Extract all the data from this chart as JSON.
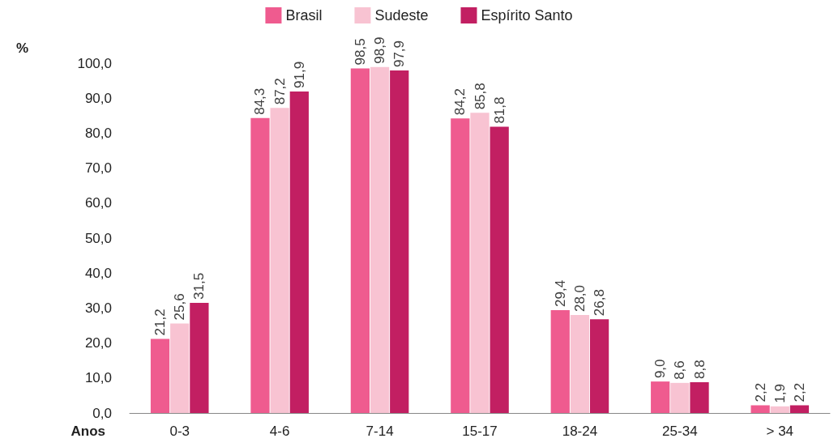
{
  "chart_data": {
    "type": "bar",
    "xlabel": "Anos",
    "ylabel": "%",
    "categories": [
      "0-3",
      "4-6",
      "7-14",
      "15-17",
      "18-24",
      "25-34",
      "> 34"
    ],
    "series": [
      {
        "name": "Brasil",
        "color": "#ef5b8f",
        "values": [
          21.2,
          84.3,
          98.5,
          84.2,
          29.4,
          9.0,
          2.2
        ],
        "value_labels": [
          "21,2",
          "84,3",
          "98,5",
          "84,2",
          "29,4",
          "9,0",
          "2,2"
        ]
      },
      {
        "name": "Sudeste",
        "color": "#f8c3d2",
        "values": [
          25.6,
          87.2,
          98.9,
          85.8,
          28.0,
          8.6,
          1.9
        ],
        "value_labels": [
          "25,6",
          "87,2",
          "98,9",
          "85,8",
          "28,0",
          "8,6",
          "1,9"
        ]
      },
      {
        "name": "Espírito Santo",
        "color": "#c21f62",
        "values": [
          31.5,
          91.9,
          97.9,
          81.8,
          26.8,
          8.8,
          2.2
        ],
        "value_labels": [
          "31,5",
          "91,9",
          "97,9",
          "81,8",
          "26,8",
          "8,8",
          "2,2"
        ]
      }
    ],
    "ylim": [
      0,
      100
    ],
    "yticks": [
      {
        "value": 0,
        "label": "0,0"
      },
      {
        "value": 10,
        "label": "10,0"
      },
      {
        "value": 20,
        "label": "20,0"
      },
      {
        "value": 30,
        "label": "30,0"
      },
      {
        "value": 40,
        "label": "40,0"
      },
      {
        "value": 50,
        "label": "50,0"
      },
      {
        "value": 60,
        "label": "60,0"
      },
      {
        "value": 70,
        "label": "70,0"
      },
      {
        "value": 80,
        "label": "80,0"
      },
      {
        "value": 90,
        "label": "90,0"
      },
      {
        "value": 100,
        "label": "100,0"
      }
    ],
    "grid": false,
    "legend": "top"
  }
}
